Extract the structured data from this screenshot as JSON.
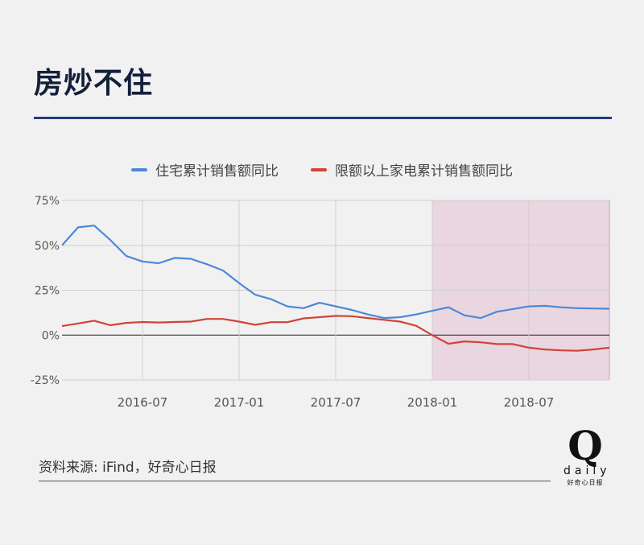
{
  "header": {
    "title": "房炒不住"
  },
  "source": {
    "text": "资料来源: iFind，好奇心日报"
  },
  "logo": {
    "mark": "Q",
    "word": "daily",
    "cn": "好奇心日报"
  },
  "colors": {
    "residential": "#4d87d8",
    "appliance": "#d0433a",
    "shade": "#e8cfdc"
  },
  "chart_data": {
    "type": "line",
    "title": "",
    "legend_position": "top-center",
    "x_ticks": [
      "2016-07",
      "2017-01",
      "2017-07",
      "2018-01",
      "2018-07"
    ],
    "x_tick_index": [
      5,
      11,
      17,
      23,
      29
    ],
    "y_ticks": [
      "75%",
      "50%",
      "25%",
      "0%",
      "-25%"
    ],
    "y_tick_values": [
      75,
      50,
      25,
      0,
      -25
    ],
    "ylim": [
      -25,
      75
    ],
    "grid": true,
    "shaded_from_index": 23,
    "x": [
      "2016-02",
      "2016-03",
      "2016-04",
      "2016-05",
      "2016-06",
      "2016-07",
      "2016-08",
      "2016-09",
      "2016-10",
      "2016-11",
      "2016-12",
      "2017-01",
      "2017-02",
      "2017-03",
      "2017-04",
      "2017-05",
      "2017-06",
      "2017-07",
      "2017-08",
      "2017-09",
      "2017-10",
      "2017-11",
      "2017-12",
      "2018-01",
      "2018-02",
      "2018-03",
      "2018-04",
      "2018-05",
      "2018-06",
      "2018-07",
      "2018-08",
      "2018-09",
      "2018-10",
      "2018-11",
      "2018-12"
    ],
    "series": [
      {
        "name": "住宅累计销售额同比",
        "values": [
          50,
          60,
          61,
          53,
          44,
          41,
          40,
          43,
          42.5,
          39.5,
          36,
          29,
          22.5,
          20,
          16,
          15,
          18,
          16,
          14,
          11.5,
          9.5,
          10,
          11.5,
          13.5,
          15.5,
          11,
          9.5,
          13,
          14.5,
          16,
          16.3,
          15.5,
          15,
          14.8,
          14.7
        ]
      },
      {
        "name": "限额以上家电累计销售额同比",
        "values": [
          5,
          6.5,
          8,
          5.5,
          6.8,
          7.3,
          7,
          7.3,
          7.5,
          9,
          9,
          7.5,
          5.7,
          7.2,
          7.2,
          9.3,
          10,
          10.7,
          10.5,
          9.5,
          8.5,
          7.5,
          5.2,
          0,
          -4.8,
          -3.5,
          -4,
          -5,
          -5,
          -7,
          -8,
          -8.5,
          -8.7,
          -8,
          -7
        ]
      }
    ]
  }
}
